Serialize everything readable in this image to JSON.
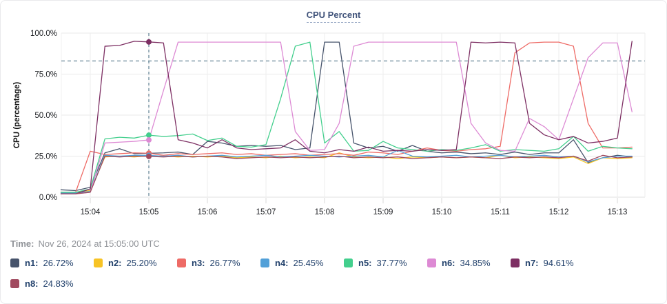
{
  "chart_data": {
    "type": "line",
    "title": "CPU Percent",
    "ylabel": "CPU (percentage)",
    "ylim": [
      0,
      100
    ],
    "grid": true,
    "legend_position": "bottom",
    "y_tick_values": [
      0,
      25,
      50,
      75,
      100
    ],
    "y_tick_labels": [
      "0.0%",
      "25.0%",
      "50.0%",
      "75.0%",
      "100.0%"
    ],
    "x_tick_labels": [
      "15:04",
      "15:05",
      "15:06",
      "15:07",
      "15:08",
      "15:09",
      "15:10",
      "15:11",
      "15:12",
      "15:13"
    ],
    "threshold_percent": 83,
    "cursor_minute": 5,
    "x_minutes": [
      3.5,
      3.75,
      4,
      4.25,
      4.5,
      4.75,
      5,
      5.25,
      5.5,
      5.75,
      6,
      6.25,
      6.5,
      6.75,
      7,
      7.25,
      7.5,
      7.75,
      8,
      8.25,
      8.5,
      8.75,
      9,
      9.25,
      9.5,
      9.75,
      10,
      10.25,
      10.5,
      10.75,
      11,
      11.25,
      11.5,
      11.75,
      12,
      12.25,
      12.5,
      12.75,
      13,
      13.25
    ],
    "series": [
      {
        "name": "n1",
        "color": "#46536b",
        "values": [
          4.5,
          4,
          6,
          27,
          29.5,
          26.5,
          26.72,
          27,
          27.5,
          26,
          34,
          33,
          31,
          31.5,
          31,
          31.5,
          29,
          30,
          94.5,
          94.5,
          33,
          30,
          31,
          28,
          31.5,
          28,
          27,
          27.5,
          26.5,
          27,
          26,
          27.5,
          26,
          27,
          27,
          35,
          21,
          24,
          25.5,
          24.5
        ]
      },
      {
        "name": "n2",
        "color": "#f7c325",
        "values": [
          3,
          3,
          4,
          24.5,
          25,
          24.5,
          25.2,
          25,
          24.5,
          25,
          24.5,
          25,
          24,
          24.5,
          24,
          25,
          24,
          24.5,
          24,
          27,
          24.5,
          24,
          24.5,
          23.5,
          24.5,
          24,
          24.5,
          24,
          24.5,
          24,
          25.5,
          24,
          24.5,
          24,
          23.5,
          24.5,
          20.5,
          24,
          23.5,
          24
        ]
      },
      {
        "name": "n3",
        "color": "#ee6b66",
        "values": [
          2.5,
          3,
          28,
          26,
          26.5,
          27,
          26.77,
          25.5,
          26.5,
          26,
          26.5,
          27,
          26,
          26.5,
          25.5,
          26,
          26.5,
          25.5,
          26,
          26.5,
          25.5,
          27.5,
          27,
          26,
          28,
          30,
          28.5,
          28,
          29,
          29.5,
          31,
          88,
          94,
          94.5,
          94.5,
          92,
          45,
          30,
          30,
          30.5
        ]
      },
      {
        "name": "n4",
        "color": "#52a0d8",
        "values": [
          2.5,
          2.5,
          3.5,
          25.5,
          25,
          25.5,
          25.45,
          25,
          25.5,
          24.5,
          25,
          25.5,
          24.5,
          25,
          25.5,
          24.5,
          25,
          25.5,
          25,
          24.5,
          25,
          25.5,
          24.5,
          28.5,
          25,
          24.5,
          25,
          25.5,
          24.5,
          25,
          25.5,
          24.5,
          25,
          25.5,
          24.5,
          25,
          21.5,
          24,
          25,
          25
        ]
      },
      {
        "name": "n5",
        "color": "#43cf8d",
        "values": [
          3,
          3,
          5,
          35.5,
          36.5,
          36,
          37.77,
          37,
          37.5,
          38.5,
          34.5,
          36,
          31,
          30.5,
          32,
          60,
          92,
          94.5,
          33,
          40,
          28,
          28.5,
          34,
          30,
          29,
          28,
          29,
          28.5,
          30,
          32,
          28,
          29,
          28.5,
          28,
          29.5,
          37,
          28,
          31,
          30,
          29.5
        ]
      },
      {
        "name": "n6",
        "color": "#dd8ad4",
        "values": [
          2,
          2,
          3,
          33,
          33.5,
          34,
          34.85,
          65,
          94.5,
          94.5,
          94.5,
          94.5,
          94.5,
          94.5,
          94.5,
          94.5,
          40,
          28.5,
          29,
          45,
          92,
          94.5,
          94.5,
          94.5,
          94.5,
          94.5,
          94.5,
          94.5,
          45,
          33,
          28.5,
          28,
          48,
          43,
          35,
          60,
          85,
          94,
          94,
          52
        ]
      },
      {
        "name": "n7",
        "color": "#7d2f63",
        "values": [
          2,
          2,
          5,
          92,
          92.5,
          95,
          94.61,
          94,
          35,
          33,
          30,
          35,
          30,
          29,
          29.5,
          30,
          35,
          28,
          27,
          29,
          28,
          30.5,
          28,
          28.5,
          28,
          29,
          28.5,
          29,
          94.5,
          94,
          94.5,
          94,
          45,
          38,
          35,
          37,
          33,
          34,
          36,
          95
        ]
      },
      {
        "name": "n8",
        "color": "#a04a5f",
        "values": [
          2,
          2,
          3,
          25,
          24.5,
          25,
          24.83,
          24.5,
          25,
          24.5,
          25,
          24.5,
          23.5,
          24,
          24.5,
          24,
          24.5,
          24,
          24.5,
          25,
          24,
          24.5,
          24,
          24.5,
          23.5,
          24,
          24.5,
          24,
          24.5,
          24,
          23.5,
          24.5,
          24,
          24.5,
          24,
          25,
          22,
          25.5,
          24,
          24.5
        ]
      }
    ]
  },
  "time_row": {
    "label": "Time:",
    "value": "Nov 26, 2024 at 15:05:00 UTC"
  },
  "legend": {
    "items": [
      {
        "label": "n1:",
        "value": "26.72%",
        "color": "#46536b"
      },
      {
        "label": "n2:",
        "value": "25.20%",
        "color": "#f7c325"
      },
      {
        "label": "n3:",
        "value": "26.77%",
        "color": "#ee6b66"
      },
      {
        "label": "n4:",
        "value": "25.45%",
        "color": "#52a0d8"
      },
      {
        "label": "n5:",
        "value": "37.77%",
        "color": "#43cf8d"
      },
      {
        "label": "n6:",
        "value": "34.85%",
        "color": "#dd8ad4"
      },
      {
        "label": "n7:",
        "value": "94.61%",
        "color": "#7d2f63"
      },
      {
        "label": "n8:",
        "value": "24.83%",
        "color": "#a04a5f"
      }
    ]
  }
}
